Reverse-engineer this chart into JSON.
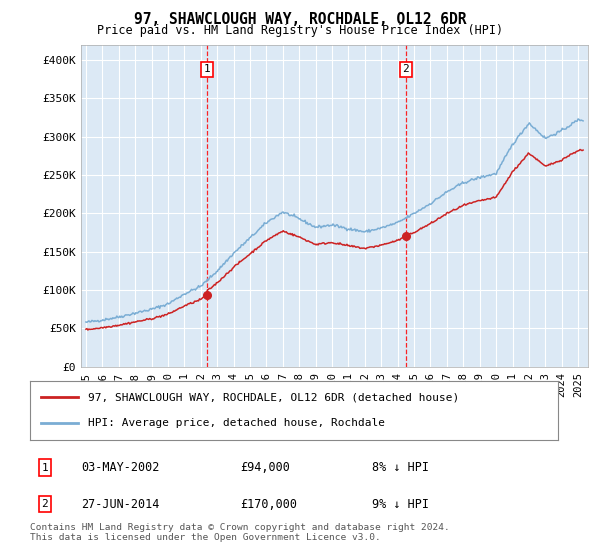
{
  "title": "97, SHAWCLOUGH WAY, ROCHDALE, OL12 6DR",
  "subtitle": "Price paid vs. HM Land Registry's House Price Index (HPI)",
  "background_color": "#ffffff",
  "plot_bg_color": "#dce9f5",
  "ylim": [
    0,
    420000
  ],
  "yticks": [
    0,
    50000,
    100000,
    150000,
    200000,
    250000,
    300000,
    350000,
    400000
  ],
  "ytick_labels": [
    "£0",
    "£50K",
    "£100K",
    "£150K",
    "£200K",
    "£250K",
    "£300K",
    "£350K",
    "£400K"
  ],
  "sale1_date": 2002.37,
  "sale1_price": 94000,
  "sale2_date": 2014.49,
  "sale2_price": 170000,
  "hpi_color": "#7aadd4",
  "price_color": "#cc2222",
  "legend_label1": "97, SHAWCLOUGH WAY, ROCHDALE, OL12 6DR (detached house)",
  "legend_label2": "HPI: Average price, detached house, Rochdale",
  "note1_label": "1",
  "note1_date": "03-MAY-2002",
  "note1_price": "£94,000",
  "note1_pct": "8% ↓ HPI",
  "note2_label": "2",
  "note2_date": "27-JUN-2014",
  "note2_price": "£170,000",
  "note2_pct": "9% ↓ HPI",
  "footer": "Contains HM Land Registry data © Crown copyright and database right 2024.\nThis data is licensed under the Open Government Licence v3.0.",
  "years_hpi": [
    1995,
    1996,
    1997,
    1998,
    1999,
    2000,
    2001,
    2002,
    2003,
    2004,
    2005,
    2006,
    2007,
    2008,
    2009,
    2010,
    2011,
    2012,
    2013,
    2014,
    2015,
    2016,
    2017,
    2018,
    2019,
    2020,
    2021,
    2022,
    2023,
    2024,
    2025
  ],
  "hpi_values": [
    58000,
    61000,
    65000,
    70000,
    75000,
    82000,
    95000,
    105000,
    125000,
    148000,
    168000,
    188000,
    202000,
    193000,
    182000,
    185000,
    180000,
    176000,
    181000,
    188000,
    200000,
    213000,
    228000,
    240000,
    247000,
    252000,
    290000,
    318000,
    298000,
    308000,
    322000
  ]
}
